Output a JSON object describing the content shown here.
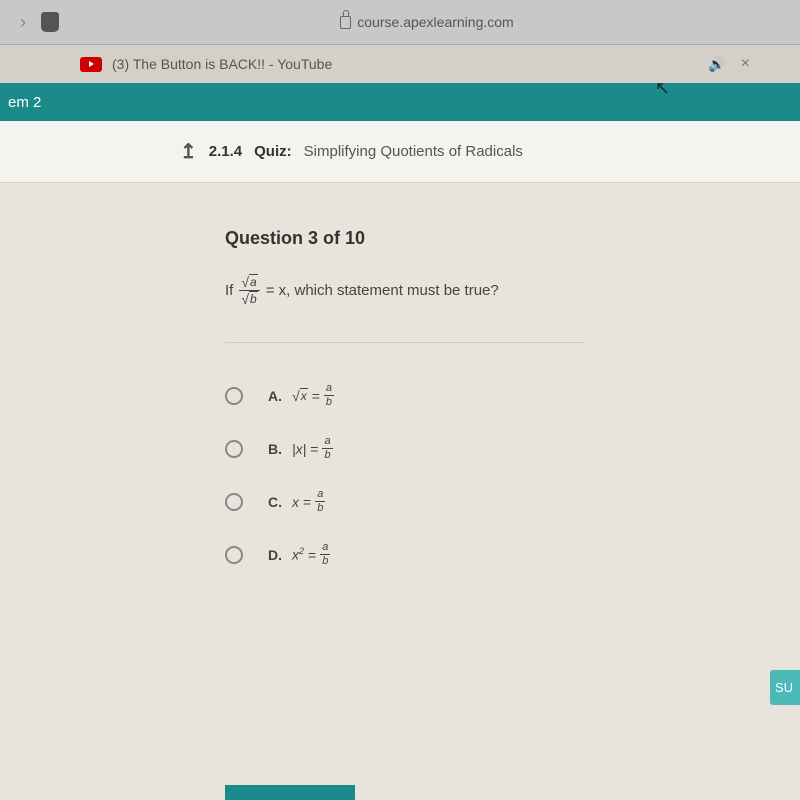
{
  "browser": {
    "url": "course.apexlearning.com",
    "tab_title": "(3) The Button is BACK!! - YouTube"
  },
  "nav": {
    "item": "em 2"
  },
  "quiz": {
    "code": "2.1.4",
    "type": "Quiz:",
    "title": "Simplifying Quotients of Radicals"
  },
  "question": {
    "heading": "Question 3 of 10",
    "prefix": "If",
    "eq_suffix": "= x, which statement must be true?",
    "frac_top_arg": "a",
    "frac_bot_arg": "b",
    "options": {
      "A": {
        "label": "A.",
        "lhs_sqrt_arg": "x",
        "frac_top": "a",
        "frac_bot": "b"
      },
      "B": {
        "label": "B.",
        "lhs": "|x|",
        "frac_top": "a",
        "frac_bot": "b"
      },
      "C": {
        "label": "C.",
        "lhs": "x",
        "frac_top": "a",
        "frac_bot": "b"
      },
      "D": {
        "label": "D.",
        "lhs_base": "x",
        "lhs_exp": "2",
        "frac_top": "a",
        "frac_bot": "b"
      }
    }
  },
  "submit_stub": "SU",
  "colors": {
    "teal": "#1a8a8a",
    "teal_light": "#4db8b8",
    "bg": "#e8e4dc"
  }
}
